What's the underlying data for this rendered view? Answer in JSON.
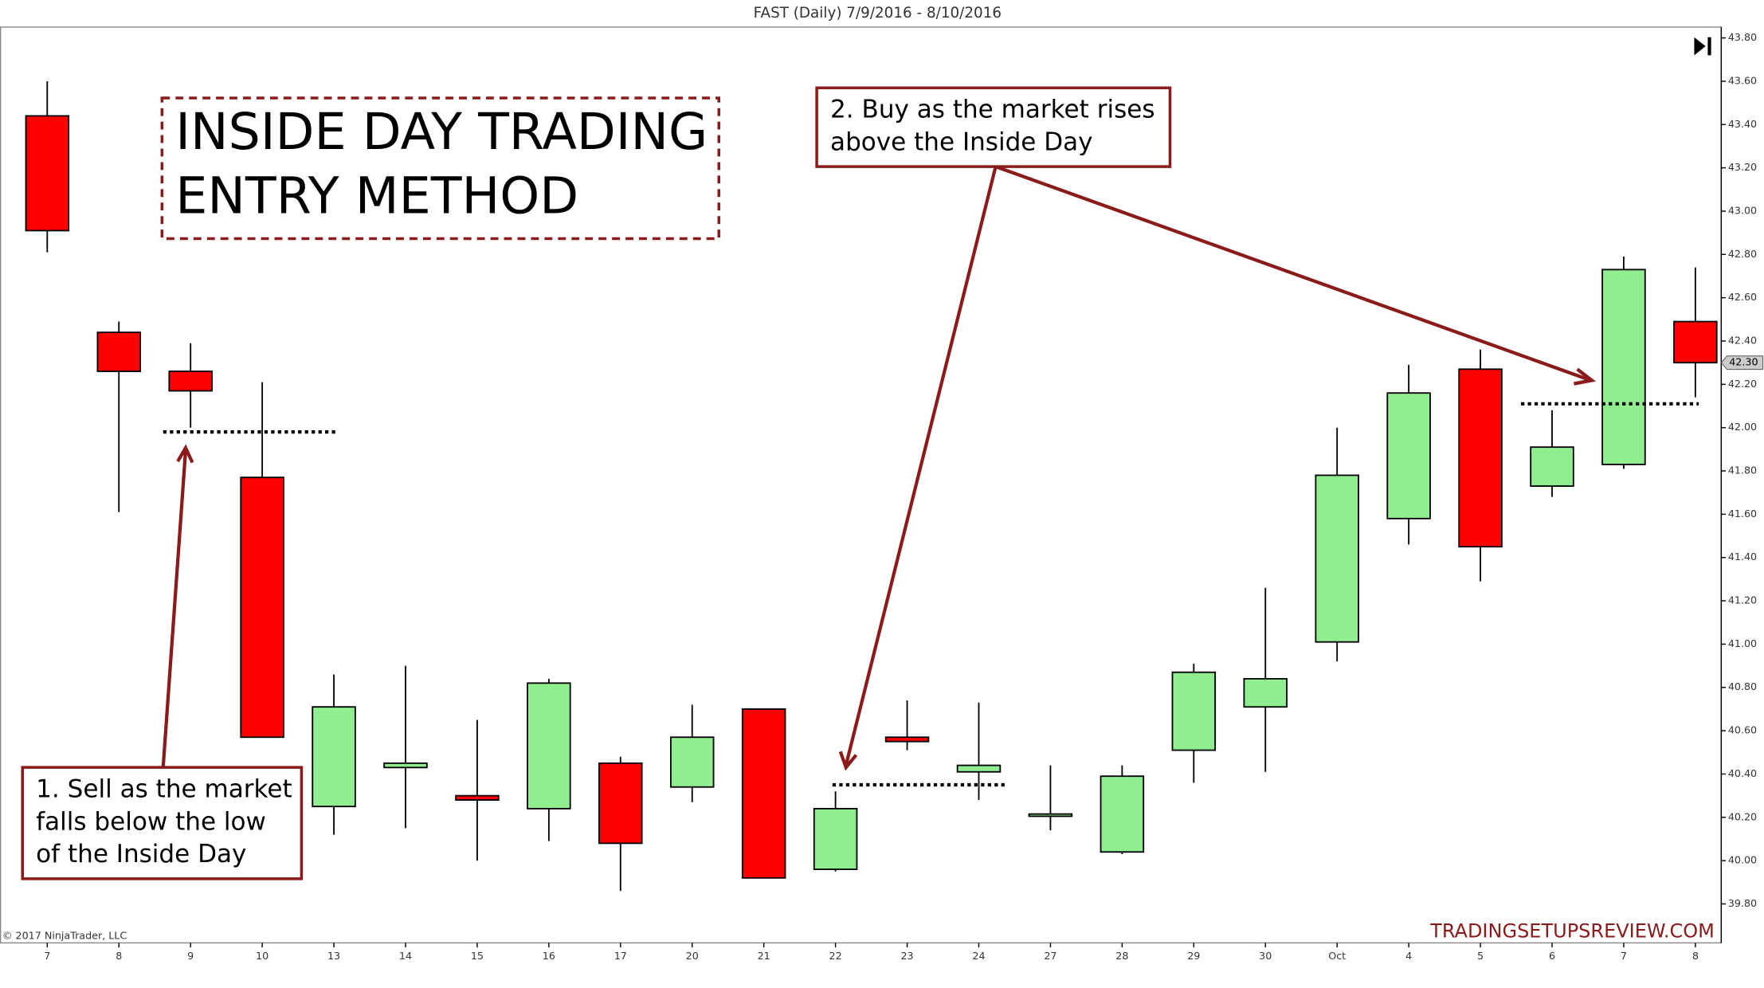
{
  "chart_data": {
    "type": "candlestick",
    "title": "FAST (Daily)  7/9/2016 - 8/10/2016",
    "categories": [
      "7",
      "8",
      "9",
      "10",
      "13",
      "14",
      "15",
      "16",
      "17",
      "20",
      "21",
      "22",
      "23",
      "24",
      "27",
      "28",
      "29",
      "30",
      "Oct",
      "4",
      "5",
      "6",
      "7",
      "8"
    ],
    "open": [
      43.44,
      42.44,
      42.26,
      41.77,
      40.25,
      40.43,
      40.3,
      40.24,
      40.45,
      40.34,
      40.7,
      39.96,
      40.57,
      40.41,
      40.21,
      40.04,
      40.51,
      40.71,
      41.01,
      41.58,
      42.27,
      41.73,
      41.83,
      42.49
    ],
    "high": [
      43.6,
      42.49,
      42.39,
      42.21,
      40.86,
      40.9,
      40.65,
      40.84,
      40.48,
      40.72,
      40.7,
      40.32,
      40.74,
      40.73,
      40.44,
      40.44,
      40.91,
      41.26,
      42.0,
      42.29,
      42.36,
      42.08,
      42.79,
      42.74
    ],
    "low": [
      42.81,
      41.61,
      42.0,
      40.57,
      40.12,
      40.15,
      40.0,
      40.09,
      39.86,
      40.27,
      39.92,
      39.95,
      40.51,
      40.28,
      40.14,
      40.03,
      40.36,
      40.41,
      40.92,
      41.46,
      41.29,
      41.68,
      41.81,
      42.14
    ],
    "close": [
      42.91,
      42.26,
      42.17,
      40.57,
      40.71,
      40.45,
      40.28,
      40.82,
      40.08,
      40.57,
      39.92,
      40.24,
      40.55,
      40.44,
      40.21,
      40.39,
      40.87,
      40.84,
      41.78,
      42.16,
      41.45,
      41.91,
      42.73,
      42.3
    ],
    "up_color": "#90ee90",
    "down_color": "#ff0000",
    "ylim": [
      39.62,
      43.85
    ],
    "yticks": [
      {
        "value": 39.8,
        "label": "39.80"
      },
      {
        "value": 40,
        "label": "40.00"
      },
      {
        "value": 40.2,
        "label": "40.20"
      },
      {
        "value": 40.4,
        "label": "40.40"
      },
      {
        "value": 40.6,
        "label": "40.60"
      },
      {
        "value": 40.8,
        "label": "40.80"
      },
      {
        "value": 41,
        "label": "41.00"
      },
      {
        "value": 41.2,
        "label": "41.20"
      },
      {
        "value": 41.4,
        "label": "41.40"
      },
      {
        "value": 41.6,
        "label": "41.60"
      },
      {
        "value": 41.8,
        "label": "41.80"
      },
      {
        "value": 42,
        "label": "42.00"
      },
      {
        "value": 42.2,
        "label": "42.20"
      },
      {
        "value": 42.4,
        "label": "42.40"
      },
      {
        "value": 42.6,
        "label": "42.60"
      },
      {
        "value": 42.8,
        "label": "42.80"
      },
      {
        "value": 43,
        "label": "43.00"
      },
      {
        "value": 43.2,
        "label": "43.20"
      },
      {
        "value": 43.4,
        "label": "43.40"
      },
      {
        "value": 43.6,
        "label": "43.60"
      },
      {
        "value": 43.8,
        "label": "43.80"
      }
    ],
    "last_price": 42.3,
    "last_price_label": "42.30",
    "reference_lines": [
      41.98,
      40.35,
      42.11
    ],
    "annotation_title": [
      "INSIDE DAY TRADING",
      "ENTRY METHOD"
    ],
    "callout_sell": [
      "1. Sell as the market",
      "falls below the low",
      "of the Inside Day"
    ],
    "callout_buy": [
      "2. Buy as the market rises",
      "above the Inside Day"
    ],
    "copyright": "© 2017 NinjaTrader, LLC",
    "watermark": "TRADINGSETUPSREVIEW.COM"
  }
}
